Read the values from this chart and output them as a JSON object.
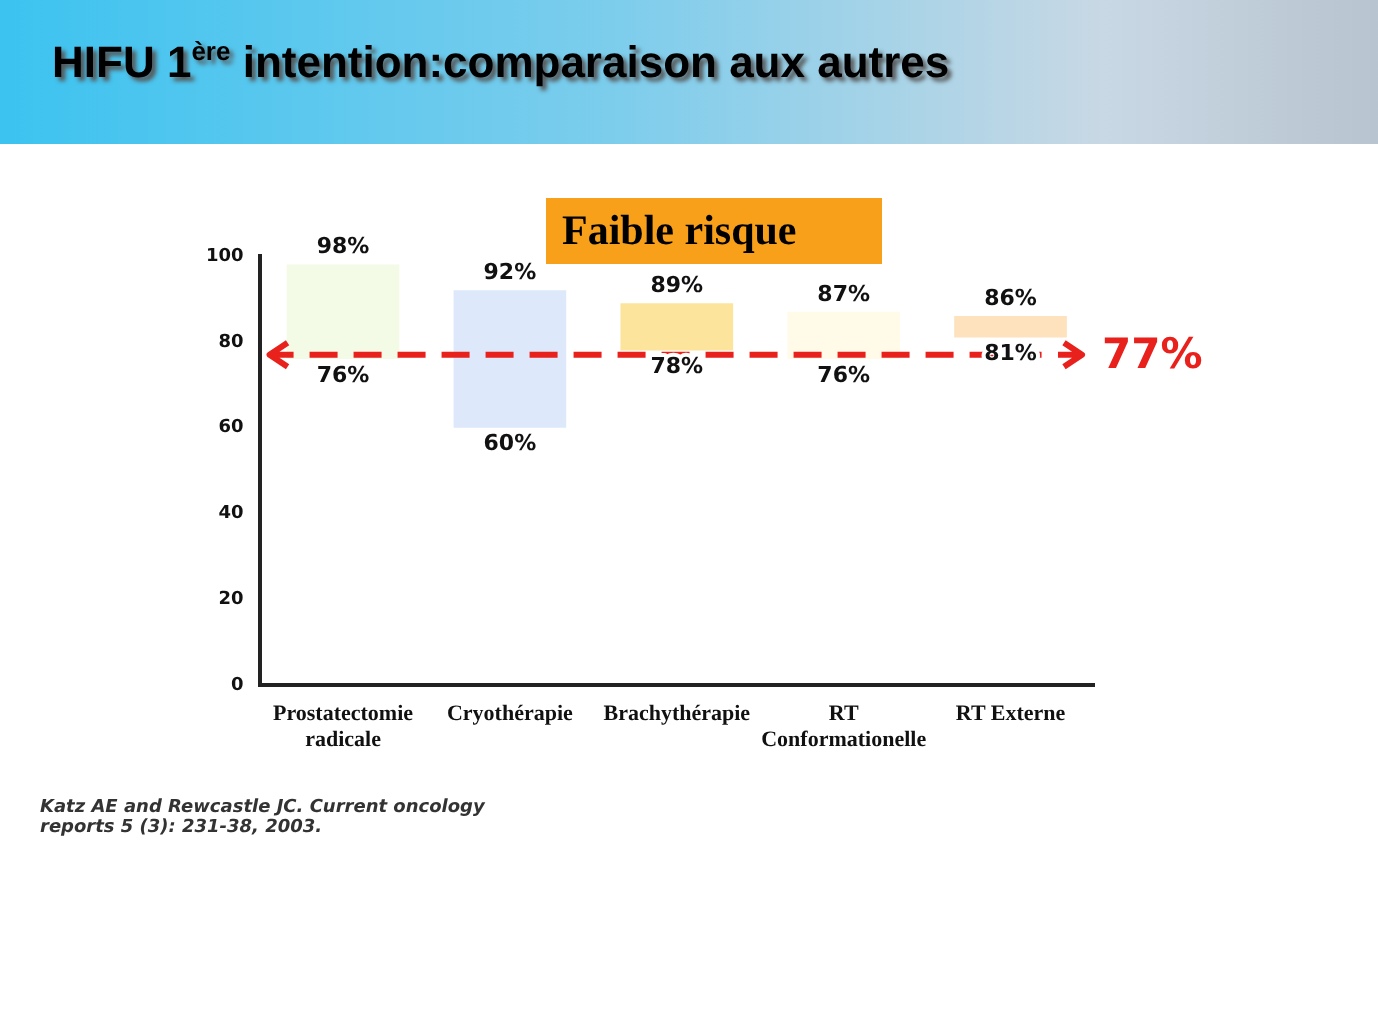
{
  "chart_data": {
    "type": "bar",
    "title": "HIFU 1$^{ère}$ intention:comparaison aux autres",
    "subtitle": "Faible risque",
    "categories": [
      "Prostatectomie radicale",
      "Cryothérapie",
      "Brachythérapie",
      "RT Conformationelle",
      "RT Externe"
    ],
    "values": [
      22,
      32,
      11,
      11,
      5
    ],
    "base": [
      76,
      60,
      78,
      76,
      81
    ],
    "colors": [
      "#f3fae6",
      "#dde9fa",
      "#fde49c",
      "#fffbe8",
      "#fde2bd"
    ],
    "ylim": [
      0,
      100
    ],
    "yticks": [
      0,
      20,
      40,
      60,
      80,
      100
    ],
    "grid": false,
    "legend": false,
    "ref_lines": [
      {
        "axis": "y",
        "value": 77,
        "label": "77%",
        "color": "#e8211c",
        "line_style": "dashed"
      }
    ],
    "annotations": [
      {
        "text": "98%",
        "x": "Prostatectomie radicale",
        "y": 98
      },
      {
        "text": "76%",
        "x": "Prostatectomie radicale",
        "y": 76
      },
      {
        "text": "92%",
        "x": "Cryothérapie",
        "y": 92
      },
      {
        "text": "60%",
        "x": "Cryothérapie",
        "y": 60
      },
      {
        "text": "89%",
        "x": "Brachythérapie",
        "y": 89
      },
      {
        "text": "78%",
        "x": "Brachythérapie",
        "y": 78
      },
      {
        "text": "87%",
        "x": "RT Conformationelle",
        "y": 87
      },
      {
        "text": "76%",
        "x": "RT Conformationelle",
        "y": 76
      },
      {
        "text": "86%",
        "x": "RT Externe",
        "y": 86
      },
      {
        "text": "81%",
        "x": "RT Externe",
        "y": 81
      },
      "Katz AE and Rewcastle JC. Current oncology reports 5 (3): 231-38, 2003."
    ]
  }
}
